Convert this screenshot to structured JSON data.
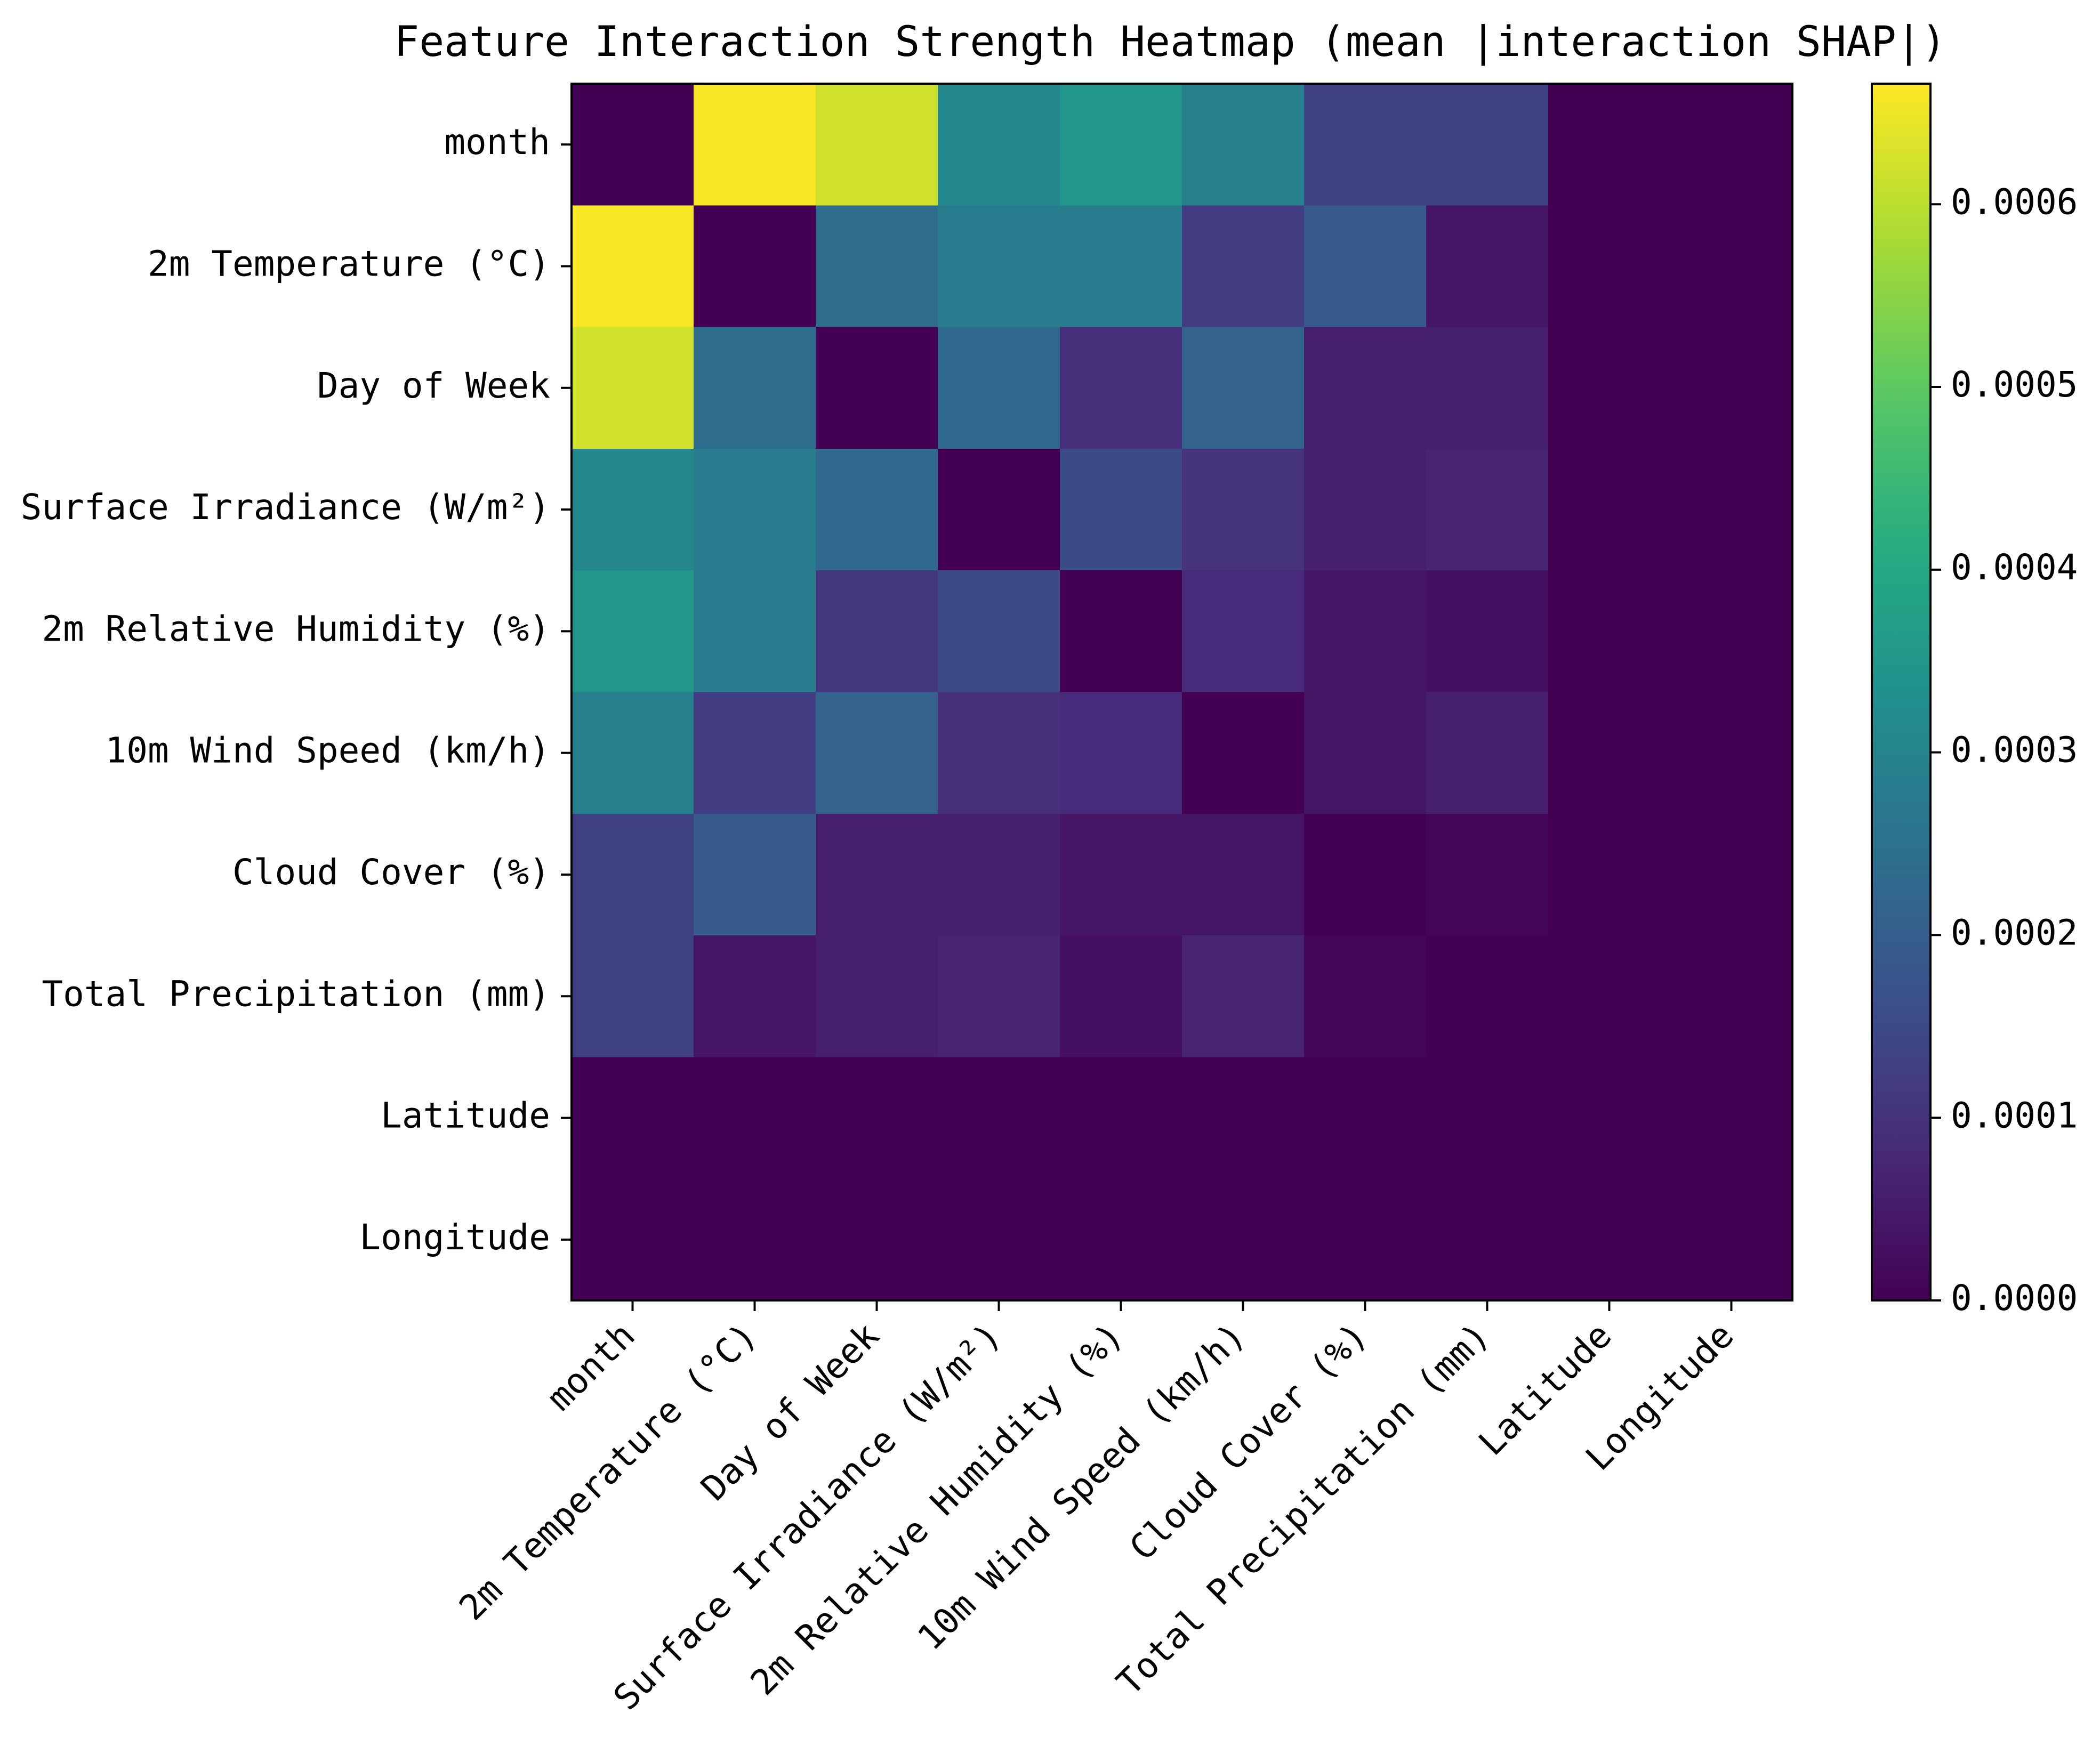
{
  "chart_data": {
    "type": "heatmap",
    "title": "Feature Interaction Strength Heatmap (mean |interaction SHAP|)",
    "row_labels": [
      "month",
      "2m Temperature (°C)",
      "Day of Week",
      "Surface Irradiance (W/m²)",
      "2m Relative Humidity (%)",
      "10m Wind Speed (km/h)",
      "Cloud Cover (%)",
      "Total Precipitation (mm)",
      "Latitude",
      "Longitude"
    ],
    "col_labels": [
      "month",
      "2m Temperature (°C)",
      "Day of Week",
      "Surface Irradiance (W/m²)",
      "2m Relative Humidity (%)",
      "10m Wind Speed (km/h)",
      "Cloud Cover (%)",
      "Total Precipitation (mm)",
      "Latitude",
      "Longitude"
    ],
    "values": [
      [
        0.0,
        0.00066,
        0.00062,
        0.00031,
        0.00035,
        0.00029,
        0.00013,
        0.00013,
        0.0,
        0.0
      ],
      [
        0.00066,
        0.0,
        0.00024,
        0.00028,
        0.00028,
        0.00012,
        0.00019,
        4e-05,
        0.0,
        0.0
      ],
      [
        0.00062,
        0.00024,
        0.0,
        0.00023,
        9e-05,
        0.00021,
        6e-05,
        6e-05,
        0.0,
        0.0
      ],
      [
        0.00031,
        0.00028,
        0.00023,
        0.0,
        0.00015,
        0.0001,
        6e-05,
        7e-05,
        0.0,
        0.0
      ],
      [
        0.00035,
        0.00028,
        0.00011,
        0.00015,
        0.0,
        8e-05,
        4e-05,
        3e-05,
        0.0,
        0.0
      ],
      [
        0.00029,
        0.00012,
        0.00021,
        9e-05,
        8e-05,
        0.0,
        4e-05,
        6e-05,
        0.0,
        0.0
      ],
      [
        0.00013,
        0.00019,
        6e-05,
        6e-05,
        4e-05,
        4e-05,
        0.0,
        1e-05,
        0.0,
        0.0
      ],
      [
        0.00013,
        4e-05,
        6e-05,
        7e-05,
        3e-05,
        7e-05,
        1e-05,
        0.0,
        0.0,
        0.0
      ],
      [
        0.0,
        0.0,
        0.0,
        0.0,
        0.0,
        0.0,
        0.0,
        0.0,
        0.0,
        0.0
      ],
      [
        0.0,
        0.0,
        0.0,
        0.0,
        0.0,
        0.0,
        0.0,
        0.0,
        0.0,
        0.0
      ]
    ],
    "colormap": "viridis",
    "colorbar": {
      "vmin": 0.0,
      "vmax": 0.000666,
      "ticks": [
        0.0,
        0.0001,
        0.0002,
        0.0003,
        0.0004,
        0.0005,
        0.0006
      ],
      "tick_labels": [
        "0.0000",
        "0.0001",
        "0.0002",
        "0.0003",
        "0.0004",
        "0.0005",
        "0.0006"
      ]
    },
    "xlabel": "",
    "ylabel": ""
  }
}
